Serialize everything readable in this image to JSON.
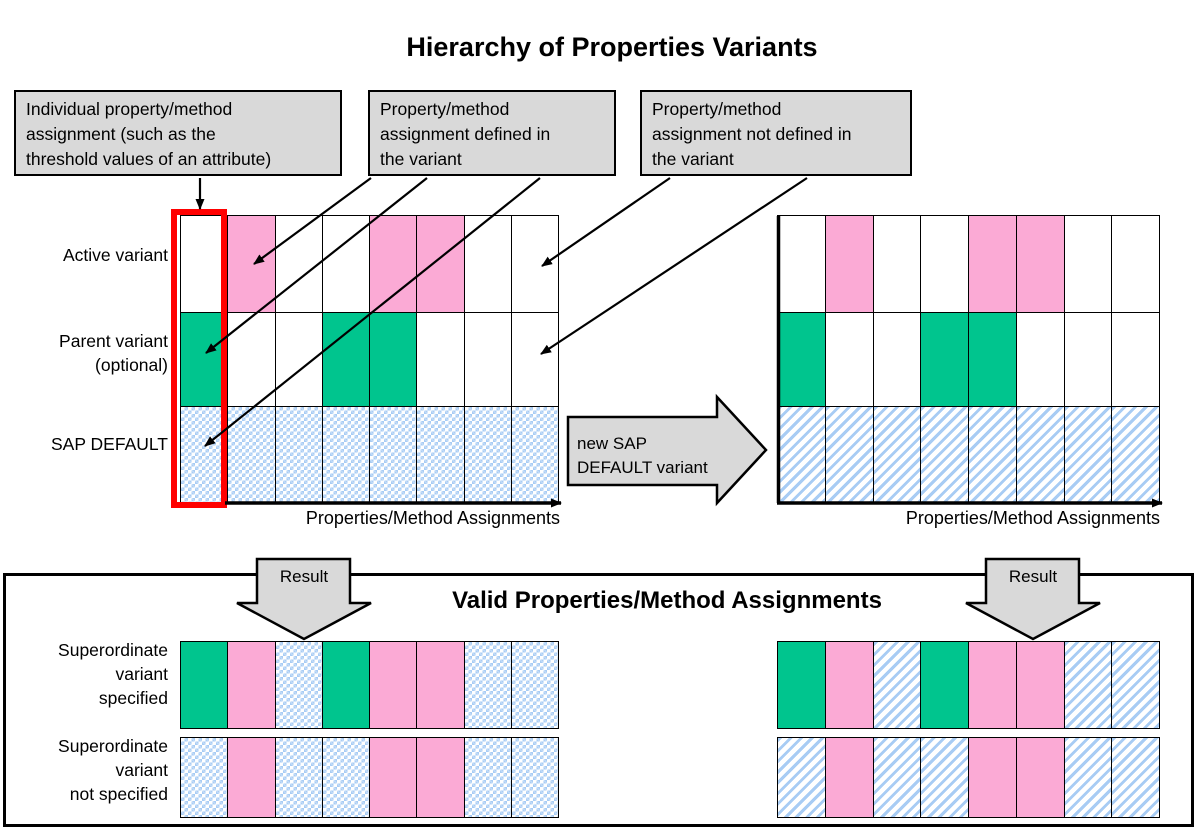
{
  "title": "Hierarchy of Properties Variants",
  "colors": {
    "pink": "#FBAAD5",
    "green": "#00C58E",
    "pattern-blue": "#A8CCF4",
    "box-gray": "#D9D9D9",
    "highlight-red": "#FF0000"
  },
  "callouts": [
    {
      "lines": [
        "Individual property/method",
        "assignment (such as the",
        "threshold values of an attribute)"
      ]
    },
    {
      "lines": [
        "Property/method",
        "assignment defined in",
        "the variant"
      ]
    },
    {
      "lines": [
        "Property/method",
        "assignment not defined in",
        "the variant"
      ]
    }
  ],
  "left_grid": {
    "row_labels": [
      {
        "lines": [
          "Active variant"
        ]
      },
      {
        "lines": [
          "Parent variant",
          "(optional)"
        ]
      },
      {
        "lines": [
          "SAP DEFAULT"
        ]
      }
    ],
    "axis_label": "Properties/Method Assignments",
    "cells": [
      [
        "white",
        "pink",
        "white",
        "white",
        "pink",
        "pink",
        "white",
        "white"
      ],
      [
        "green",
        "white",
        "white",
        "green",
        "green",
        "white",
        "white",
        "white"
      ],
      [
        "diamond",
        "diamond",
        "diamond",
        "diamond",
        "diamond",
        "diamond",
        "diamond",
        "diamond"
      ]
    ]
  },
  "right_grid": {
    "axis_label": "Properties/Method Assignments",
    "cells": [
      [
        "white",
        "pink",
        "white",
        "white",
        "pink",
        "pink",
        "white",
        "white"
      ],
      [
        "green",
        "white",
        "white",
        "green",
        "green",
        "white",
        "white",
        "white"
      ],
      [
        "hatch",
        "hatch",
        "hatch",
        "hatch",
        "hatch",
        "hatch",
        "hatch",
        "hatch"
      ]
    ]
  },
  "transform_arrow": {
    "lines": [
      "new SAP",
      "DEFAULT variant"
    ]
  },
  "result_section": {
    "title": "Valid Properties/Method Assignments",
    "result_label": "Result",
    "row_labels": [
      {
        "lines": [
          "Superordinate",
          "variant",
          "specified"
        ]
      },
      {
        "lines": [
          "Superordinate",
          "variant",
          "not specified"
        ]
      }
    ],
    "strips": {
      "left_specified": [
        "green",
        "pink",
        "diamond",
        "green",
        "pink",
        "pink",
        "diamond",
        "diamond"
      ],
      "left_not_specified": [
        "diamond",
        "pink",
        "diamond",
        "diamond",
        "pink",
        "pink",
        "diamond",
        "diamond"
      ],
      "right_specified": [
        "green",
        "pink",
        "hatch",
        "green",
        "pink",
        "pink",
        "hatch",
        "hatch"
      ],
      "right_not_specified": [
        "hatch",
        "pink",
        "hatch",
        "hatch",
        "pink",
        "pink",
        "hatch",
        "hatch"
      ]
    }
  }
}
